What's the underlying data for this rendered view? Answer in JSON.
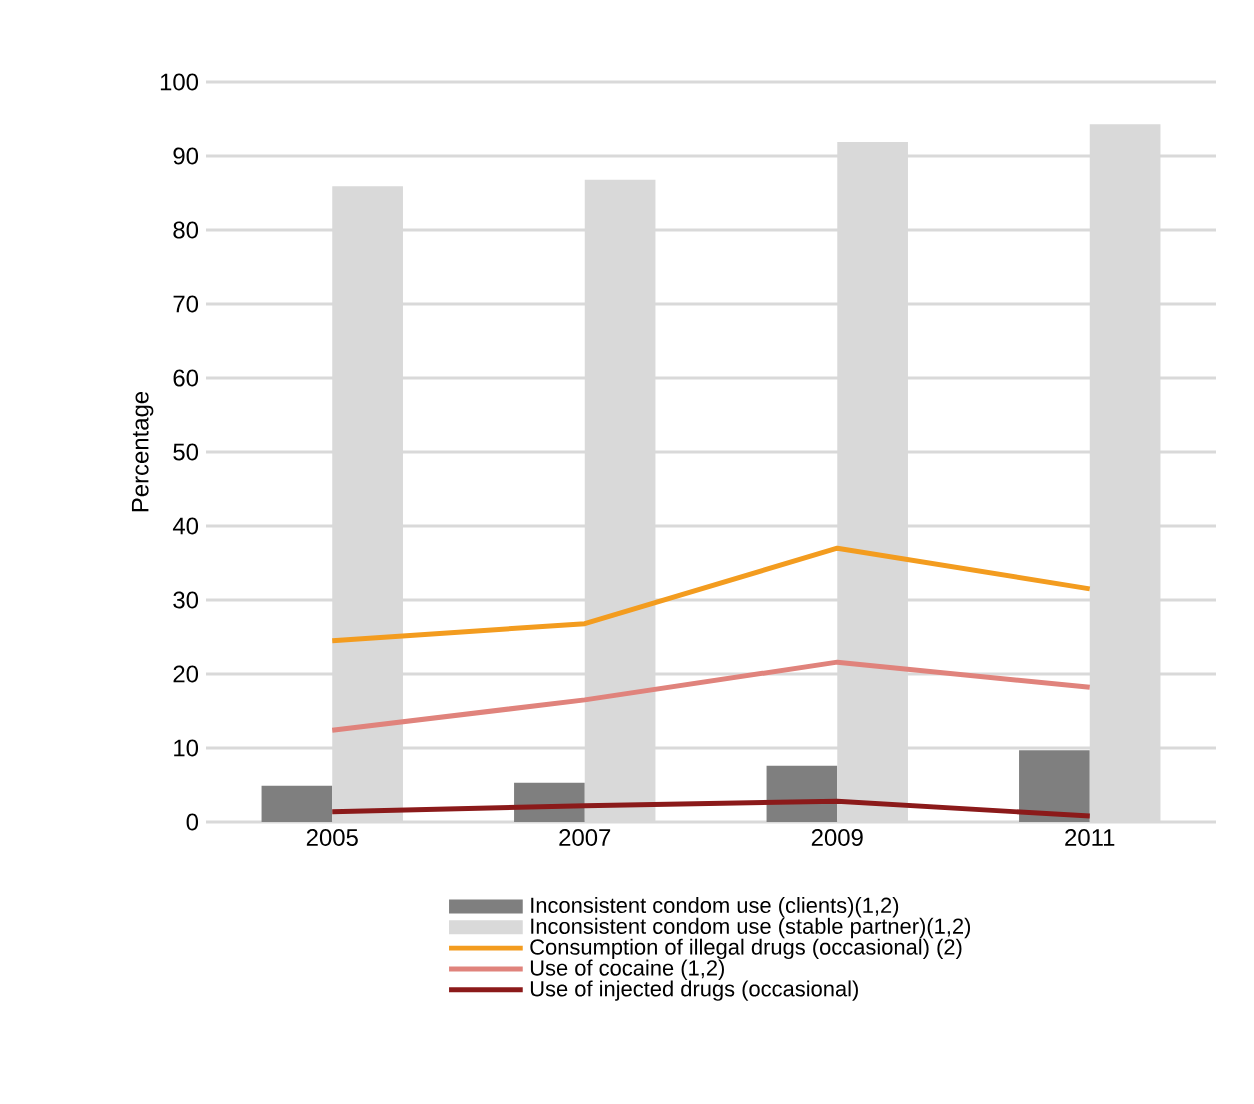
{
  "chart_data": {
    "type": "bar",
    "ylabel": "Percentage",
    "categories": [
      "2005",
      "2007",
      "2009",
      "2011"
    ],
    "series": [
      {
        "name": "Inconsistent condom use (clients)(1,2)",
        "color": "#7f7f7f",
        "values": [
          4.9,
          5.3,
          7.6,
          9.7
        ]
      },
      {
        "name": "Inconsistent condom use (stable partner)(1,2)",
        "color": "#d9d9d9",
        "values": [
          85.9,
          86.8,
          91.9,
          94.3
        ]
      },
      {
        "name": "Consumption of illegal drugs (occasional) (2)",
        "type": "line",
        "color": "#f39c1f",
        "values": [
          24.5,
          26.8,
          37.0,
          31.5
        ]
      },
      {
        "name": "Use of cocaine (1,2)",
        "type": "line",
        "color": "#e0837c",
        "values": [
          12.4,
          16.5,
          21.6,
          18.2
        ]
      },
      {
        "name": "Use of injected drugs (occasional)",
        "type": "line",
        "color": "#8b1a1a",
        "values": [
          1.4,
          2.2,
          2.8,
          0.8
        ]
      }
    ],
    "ylim": [
      0,
      100
    ],
    "yticks": [
      0,
      10,
      20,
      30,
      40,
      50,
      60,
      70,
      80,
      90,
      100
    ],
    "grid": "y",
    "legend": "bottom",
    "marker": "none",
    "line_style": "solid"
  }
}
